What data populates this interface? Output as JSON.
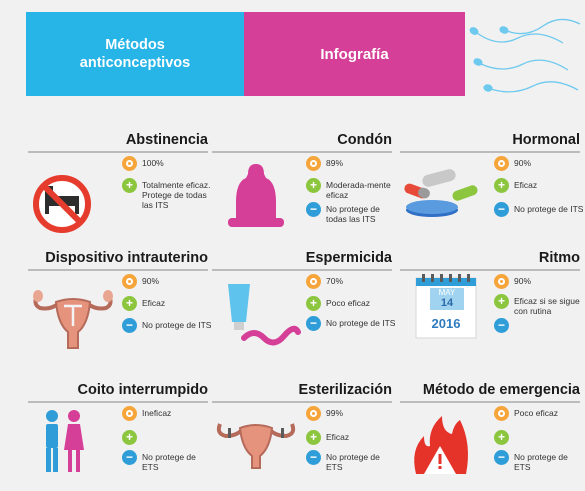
{
  "header": {
    "title_line1": "Métodos",
    "title_line2": "anticonceptivos",
    "subtitle": "Infografía"
  },
  "colors": {
    "blue": "#27b4e6",
    "pink": "#d63f97",
    "orange": "#f6a53b",
    "green": "#8cc63e",
    "badge_blue": "#2f9ed8"
  },
  "cards": [
    {
      "title": "Abstinencia",
      "icon": "no-bed-icon",
      "efficacy": "100%",
      "pro": "Totalmente eficaz. Protege de todas las ITS",
      "con": ""
    },
    {
      "title": "Condón",
      "icon": "condom-icon",
      "efficacy": "89%",
      "pro": "Moderada-mente eficaz",
      "con": "No protege de todas las ITS"
    },
    {
      "title": "Hormonal",
      "icon": "pills-icon",
      "efficacy": "90%",
      "pro": "Eficaz",
      "con": "No protege de ITS"
    },
    {
      "title": "Dispositivo intrauterino",
      "icon": "uterus-iud-icon",
      "efficacy": "90%",
      "pro": "Eficaz",
      "con": "No protege de ITS"
    },
    {
      "title": "Espermicida",
      "icon": "spermicide-tube-icon",
      "efficacy": "70%",
      "pro": "Poco eficaz",
      "con": "No protege de ITS"
    },
    {
      "title": "Ritmo",
      "icon": "calendar-icon",
      "efficacy": "90%",
      "pro": "Eficaz si se sigue con rutina",
      "con": ""
    },
    {
      "title": "Coito interrumpido",
      "icon": "couple-icon",
      "efficacy": "Ineficaz",
      "pro": "",
      "con": "No protege de ETS"
    },
    {
      "title": "Esterilización",
      "icon": "sterilization-icon",
      "efficacy": "99%",
      "pro": "Eficaz",
      "con": "No protege de ETS"
    },
    {
      "title": "Método de emergencia",
      "icon": "fire-warning-icon",
      "efficacy": "Poco eficaz",
      "pro": "",
      "con": "No protege de ETS"
    }
  ],
  "calendar": {
    "month": "MAY",
    "day": "14",
    "year": "2016"
  }
}
